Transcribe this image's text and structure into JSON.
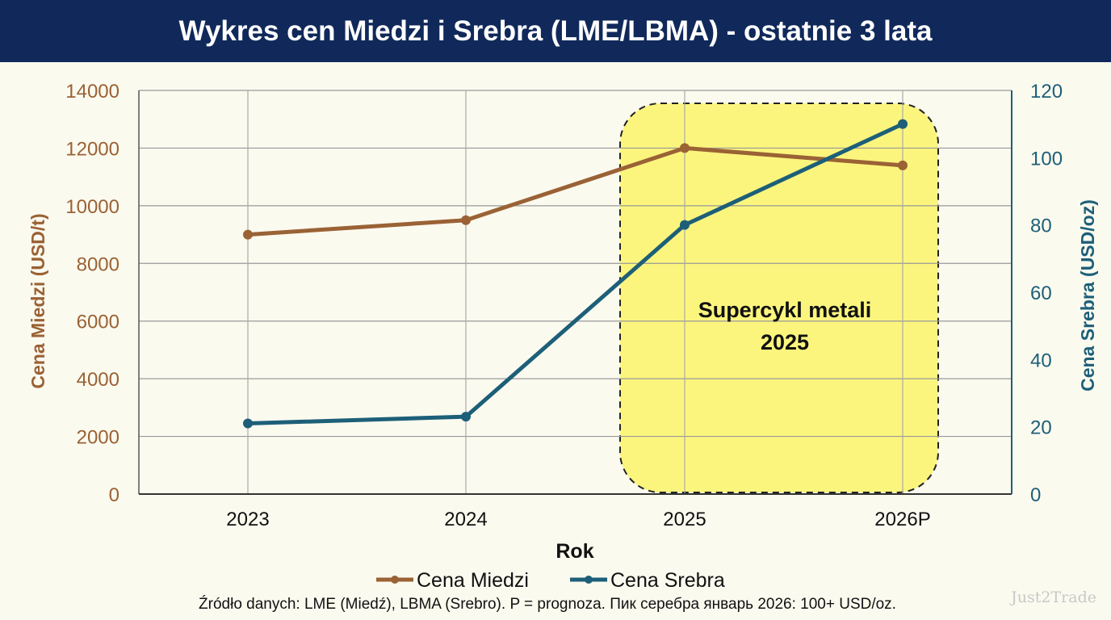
{
  "title": "Wykres cen Miedzi i Srebra (LME/LBMA) - ostatnie 3 lata",
  "footer": {
    "source": "Źródło danych: LME (Miedź), LBMA (Srebro). P = prognoza. Пик серебра январь 2026: 100+ USD/oz.",
    "watermark": "Just2Trade"
  },
  "chart_data": {
    "type": "line",
    "title": "Wykres cen Miedzi i Srebra (LME/LBMA) - ostatnie 3 lata",
    "categories": [
      "2023",
      "2024",
      "2025",
      "2026P"
    ],
    "xlabel": "Rok",
    "ylabel_left": "Cena Miedzi (USD/t)",
    "ylabel_right": "Cena Srebra (USD/oz)",
    "ylim_left": [
      0,
      14000
    ],
    "yticks_left": [
      0,
      2000,
      4000,
      6000,
      8000,
      10000,
      12000,
      14000
    ],
    "ylim_right": [
      0,
      120
    ],
    "yticks_right": [
      0,
      20,
      40,
      60,
      80,
      100,
      120
    ],
    "grid": true,
    "legend_position": "bottom",
    "series": [
      {
        "name": "Cena Miedzi",
        "axis": "left",
        "color": "#9a6235",
        "values": [
          9000,
          9500,
          12000,
          11400
        ]
      },
      {
        "name": "Cena Srebra",
        "axis": "right",
        "color": "#1d5f78",
        "values": [
          21,
          23,
          80,
          110
        ]
      }
    ],
    "annotation": {
      "text_line1": "Supercykl metali",
      "text_line2": "2025",
      "highlight_color": "#fbf57e",
      "from_category": "2025",
      "to_category": "2026P"
    }
  }
}
